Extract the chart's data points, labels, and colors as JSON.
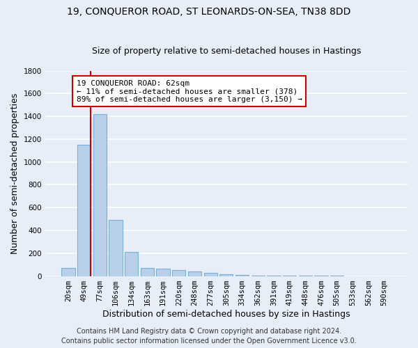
{
  "title": "19, CONQUEROR ROAD, ST LEONARDS-ON-SEA, TN38 8DD",
  "subtitle": "Size of property relative to semi-detached houses in Hastings",
  "xlabel": "Distribution of semi-detached houses by size in Hastings",
  "ylabel": "Number of semi-detached properties",
  "categories": [
    "20sqm",
    "49sqm",
    "77sqm",
    "106sqm",
    "134sqm",
    "163sqm",
    "191sqm",
    "220sqm",
    "248sqm",
    "277sqm",
    "305sqm",
    "334sqm",
    "362sqm",
    "391sqm",
    "419sqm",
    "448sqm",
    "476sqm",
    "505sqm",
    "533sqm",
    "562sqm",
    "590sqm"
  ],
  "values": [
    70,
    1150,
    1420,
    490,
    210,
    70,
    65,
    50,
    40,
    30,
    15,
    8,
    5,
    3,
    2,
    1,
    1,
    1,
    0,
    0,
    0
  ],
  "bar_color": "#b8d0ea",
  "bar_edge_color": "#7aafd4",
  "annotation_text": "19 CONQUEROR ROAD: 62sqm\n← 11% of semi-detached houses are smaller (378)\n89% of semi-detached houses are larger (3,150) →",
  "annotation_box_color": "#ffffff",
  "annotation_box_edge_color": "#cc0000",
  "red_line_color": "#cc0000",
  "ylim": [
    0,
    1800
  ],
  "yticks": [
    0,
    200,
    400,
    600,
    800,
    1000,
    1200,
    1400,
    1600,
    1800
  ],
  "footer_line1": "Contains HM Land Registry data © Crown copyright and database right 2024.",
  "footer_line2": "Contains public sector information licensed under the Open Government Licence v3.0.",
  "background_color": "#e8eef8",
  "plot_background_color": "#e8eef8",
  "grid_color": "#ffffff",
  "title_fontsize": 10,
  "subtitle_fontsize": 9,
  "axis_label_fontsize": 9,
  "tick_fontsize": 7.5,
  "annotation_fontsize": 8,
  "footer_fontsize": 7
}
